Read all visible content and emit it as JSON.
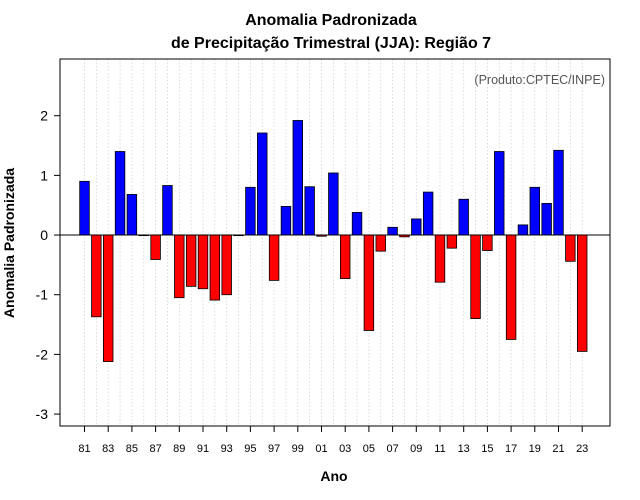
{
  "chart_data": {
    "type": "bar",
    "title_line1": "Anomalia Padronizada",
    "title_line2": "de Precipitação Trimestral (JJA): Região 7",
    "credit": "(Produto:CPTEC/INPE)",
    "xlabel": "Ano",
    "ylabel": "Anomalia Padronizada",
    "ylim": [
      -3.2,
      2.95
    ],
    "yticks": [
      -3,
      -2,
      -1,
      0,
      1,
      2
    ],
    "ytick_labels": [
      "-3",
      "-2",
      "-1",
      "0",
      "1",
      "2"
    ],
    "categories": [
      "81",
      "82",
      "83",
      "84",
      "85",
      "86",
      "87",
      "88",
      "89",
      "90",
      "91",
      "92",
      "93",
      "94",
      "95",
      "96",
      "97",
      "98",
      "99",
      "00",
      "01",
      "02",
      "03",
      "04",
      "05",
      "06",
      "07",
      "08",
      "09",
      "10",
      "11",
      "12",
      "13",
      "14",
      "15",
      "16",
      "17",
      "18",
      "19",
      "20",
      "21",
      "22",
      "23"
    ],
    "xtick_labels": [
      "81",
      "83",
      "85",
      "87",
      "89",
      "91",
      "93",
      "95",
      "97",
      "99",
      "01",
      "03",
      "05",
      "07",
      "09",
      "11",
      "13",
      "15",
      "17",
      "19",
      "21",
      "23"
    ],
    "values": [
      0.9,
      -1.37,
      -2.12,
      1.4,
      0.68,
      0.0,
      -0.41,
      0.83,
      -1.05,
      -0.86,
      -0.9,
      -1.09,
      -1.0,
      0.0,
      0.8,
      1.71,
      -0.76,
      0.48,
      1.92,
      0.81,
      -0.02,
      1.04,
      -0.73,
      0.38,
      -1.6,
      -0.27,
      0.13,
      -0.03,
      0.27,
      0.72,
      -0.79,
      -0.22,
      0.6,
      -1.4,
      -0.26,
      1.4,
      -1.75,
      0.17,
      0.8,
      0.53,
      1.42,
      -0.44,
      -1.95
    ],
    "colors": {
      "positive": "#0000ff",
      "negative": "#ff0000",
      "grid": "#d3d3d3"
    },
    "grid": "vertical-dotted"
  }
}
